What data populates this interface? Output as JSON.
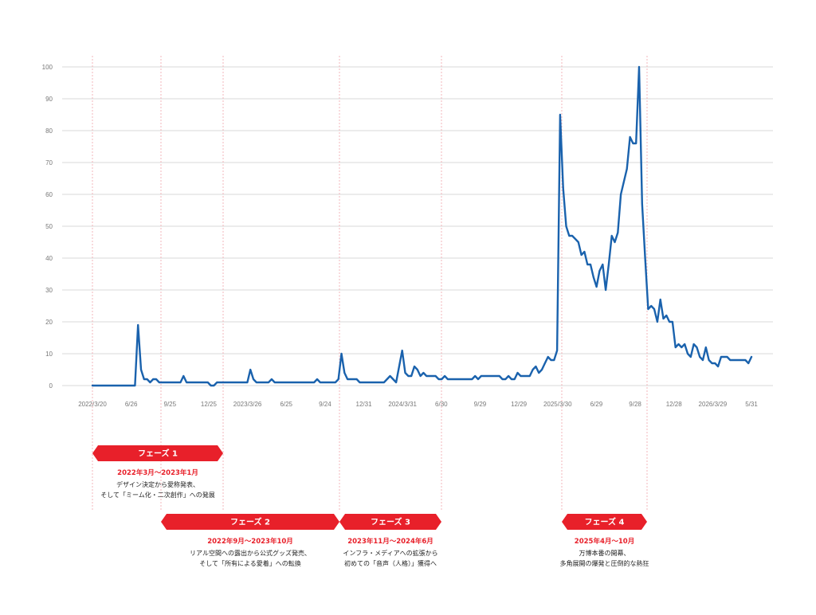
{
  "chart_data": {
    "type": "line",
    "ylim": [
      0,
      100
    ],
    "y_ticks": [
      0,
      10,
      20,
      30,
      40,
      50,
      60,
      70,
      80,
      90,
      100
    ],
    "x_tick_labels": [
      "2022/3/20",
      "6/26",
      "9/25",
      "12/25",
      "2023/3/26",
      "6/25",
      "9/24",
      "12/31",
      "2024/3/31",
      "6/30",
      "9/29",
      "12/29",
      "2025/3/30",
      "6/29",
      "9/28",
      "12/28",
      "2026/3/29",
      "5/31"
    ],
    "grid": "horizontal",
    "line_color": "#1a62ad",
    "accent_color": "#e8202a",
    "series": [
      {
        "values": [
          0,
          0,
          0,
          0,
          0,
          0,
          0,
          0,
          0,
          0,
          0,
          0,
          0,
          0,
          0,
          19,
          5,
          2,
          2,
          1,
          2,
          2,
          1,
          1,
          1,
          1,
          1,
          1,
          1,
          1,
          3,
          1,
          1,
          1,
          1,
          1,
          1,
          1,
          1,
          0,
          0,
          1,
          1,
          1,
          1,
          1,
          1,
          1,
          1,
          1,
          1,
          1,
          5,
          2,
          1,
          1,
          1,
          1,
          1,
          2,
          1,
          1,
          1,
          1,
          1,
          1,
          1,
          1,
          1,
          1,
          1,
          1,
          1,
          1,
          2,
          1,
          1,
          1,
          1,
          1,
          1,
          2,
          10,
          4,
          2,
          2,
          2,
          2,
          1,
          1,
          1,
          1,
          1,
          1,
          1,
          1,
          1,
          2,
          3,
          2,
          1,
          6,
          11,
          4,
          3,
          3,
          6,
          5,
          3,
          4,
          3,
          3,
          3,
          3,
          2,
          2,
          3,
          2,
          2,
          2,
          2,
          2,
          2,
          2,
          2,
          2,
          3,
          2,
          3,
          3,
          3,
          3,
          3,
          3,
          3,
          2,
          2,
          3,
          2,
          2,
          4,
          3,
          3,
          3,
          3,
          5,
          6,
          4,
          5,
          7,
          9,
          8,
          8,
          11,
          85,
          62,
          50,
          47,
          47,
          46,
          45,
          41,
          42,
          38,
          38,
          34,
          31,
          36,
          38,
          30,
          38,
          47,
          45,
          48,
          60,
          64,
          68,
          78,
          76,
          76,
          100,
          57,
          40,
          24,
          25,
          24,
          20,
          27,
          21,
          22,
          20,
          20,
          12,
          13,
          12,
          13,
          10,
          9,
          13,
          12,
          9,
          8,
          12,
          8,
          7,
          7,
          6,
          9,
          9,
          9,
          8,
          8,
          8,
          8,
          8,
          8,
          7,
          9
        ]
      }
    ],
    "phases": [
      {
        "label": "フェーズ 1",
        "date": "2022年3月～2023年1月",
        "desc": [
          "デザイン決定から愛称発表、",
          "そして「ミーム化・二次創作」への発展"
        ]
      },
      {
        "label": "フェーズ 2",
        "date": "2022年9月～2023年10月",
        "desc": [
          "リアル空間への露出から公式グッズ発売、",
          "そして「所有による愛着」への転換"
        ]
      },
      {
        "label": "フェーズ 3",
        "date": "2023年11月～2024年6月",
        "desc": [
          "インフラ・メディアへの拡張から",
          "初めての「音声（人格）」獲得へ"
        ]
      },
      {
        "label": "フェーズ 4",
        "date": "2025年4月～10月",
        "desc": [
          "万博本番の開幕、",
          "多角展開の爆発と圧倒的な熱狂"
        ]
      }
    ]
  }
}
